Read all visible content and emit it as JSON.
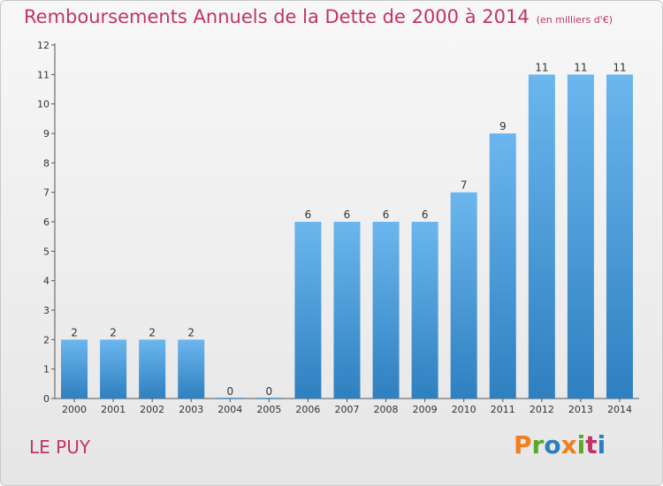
{
  "title": "Remboursements Annuels de la Dette de 2000 à 2014",
  "subtitle": "(en milliers d'€)",
  "commune": "LE PUY",
  "logo": {
    "text": "Proxiti",
    "letter_colors": [
      "#f07f1f",
      "#5aaa2a",
      "#2a7fc0",
      "#f07f1f",
      "#5aaa2a",
      "#c0336a",
      "#2a7fc0"
    ]
  },
  "colors": {
    "bar_top": "#6bb6ee",
    "bar_bottom": "#2f80c0",
    "title": "#c0336a"
  },
  "chart_data": {
    "type": "bar",
    "title": "Remboursements Annuels de la Dette de 2000 à 2014",
    "subtitle": "(en milliers d'€)",
    "categories": [
      "2000",
      "2001",
      "2002",
      "2003",
      "2004",
      "2005",
      "2006",
      "2007",
      "2008",
      "2009",
      "2010",
      "2011",
      "2012",
      "2013",
      "2014"
    ],
    "values": [
      2,
      2,
      2,
      2,
      0,
      0,
      6,
      6,
      6,
      6,
      7,
      9,
      11,
      11,
      11
    ],
    "ylim": [
      0,
      12
    ],
    "yticks": [
      0,
      1,
      2,
      3,
      4,
      5,
      6,
      7,
      8,
      9,
      10,
      11,
      12
    ],
    "grid": false
  }
}
